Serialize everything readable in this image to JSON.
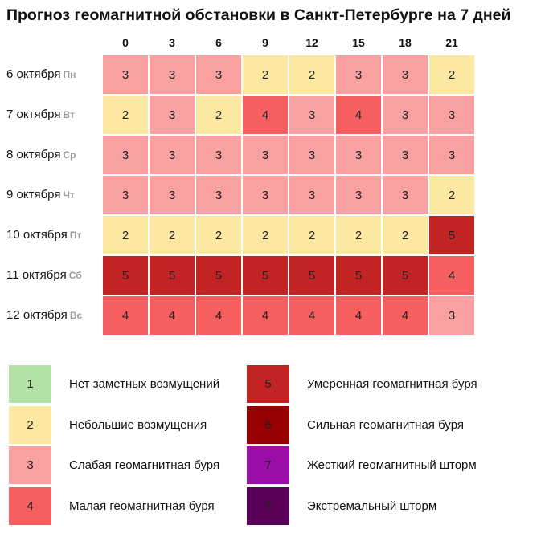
{
  "title": "Прогноз геомагнитной обстановки в Санкт-Петербурге на 7 дней",
  "chart_data": {
    "type": "heatmap",
    "title": "Прогноз геомагнитной обстановки в Санкт-Петербурге на 7 дней",
    "columns": [
      "0",
      "3",
      "6",
      "9",
      "12",
      "15",
      "18",
      "21"
    ],
    "rows": [
      {
        "date": "6 октября",
        "dow": "Пн",
        "values": [
          3,
          3,
          3,
          2,
          2,
          3,
          3,
          2
        ]
      },
      {
        "date": "7 октября",
        "dow": "Вт",
        "values": [
          2,
          3,
          2,
          4,
          3,
          4,
          3,
          3
        ]
      },
      {
        "date": "8 октября",
        "dow": "Ср",
        "values": [
          3,
          3,
          3,
          3,
          3,
          3,
          3,
          3
        ]
      },
      {
        "date": "9 октября",
        "dow": "Чт",
        "values": [
          3,
          3,
          3,
          3,
          3,
          3,
          3,
          2
        ]
      },
      {
        "date": "10 октября",
        "dow": "Пт",
        "values": [
          2,
          2,
          2,
          2,
          2,
          2,
          2,
          5
        ]
      },
      {
        "date": "11 октября",
        "dow": "Сб",
        "values": [
          5,
          5,
          5,
          5,
          5,
          5,
          5,
          4
        ]
      },
      {
        "date": "12 октября",
        "dow": "Вс",
        "values": [
          4,
          4,
          4,
          4,
          4,
          4,
          4,
          3
        ]
      }
    ],
    "legend": [
      {
        "level": "1",
        "label": "Нет заметных возмущений",
        "color": "#b2e2a6"
      },
      {
        "level": "2",
        "label": "Небольшие возмущения",
        "color": "#fde8a2"
      },
      {
        "level": "3",
        "label": "Слабая геомагнитная буря",
        "color": "#f9a1a1"
      },
      {
        "level": "4",
        "label": "Малая геомагнитная буря",
        "color": "#f55f5f"
      },
      {
        "level": "5",
        "label": "Умеренная геомагнитная буря",
        "color": "#c22424"
      },
      {
        "level": "6",
        "label": "Сильная геомагнитная буря",
        "color": "#960000"
      },
      {
        "level": "7",
        "label": "Жесткий геомагнитный шторм",
        "color": "#9b0ea8"
      },
      {
        "level": "8",
        "label": "Экстремальный шторм",
        "color": "#5a0059"
      }
    ]
  }
}
